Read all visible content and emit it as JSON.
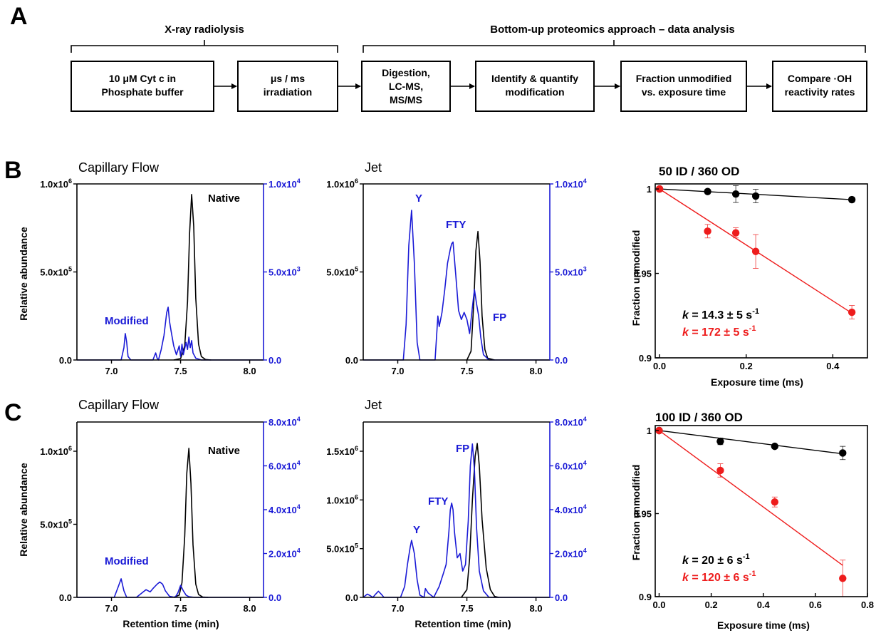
{
  "colors": {
    "black": "#000000",
    "blue": "#1a1ad6",
    "red": "#ee1c1c"
  },
  "panel_a": {
    "letter": "A",
    "header_left": "X-ray radiolysis",
    "header_right": "Bottom-up proteomics approach – data analysis",
    "steps": [
      [
        "10 μM Cyt c in",
        "Phosphate buffer"
      ],
      [
        "μs / ms",
        "irradiation"
      ],
      [
        "Digestion,",
        "LC-MS,",
        "MS/MS"
      ],
      [
        "Identify  & quantify",
        "modification"
      ],
      [
        "Fraction unmodified",
        "vs. exposure time"
      ],
      [
        "Compare ·OH",
        "reactivity rates"
      ]
    ]
  },
  "panel_b": {
    "letter": "B",
    "capillary": {
      "subtitle": "Capillary Flow",
      "ylabel": "Relative abundance",
      "xticks": [
        "7.0",
        "7.5",
        "8.0"
      ],
      "yticks_left": [
        "0.0",
        "5.0x10",
        "1.0x10"
      ],
      "yticks_left_exp": [
        "",
        "5",
        "6"
      ],
      "yticks_right": [
        "0.0",
        "5.0x10",
        "1.0x10"
      ],
      "yticks_right_exp": [
        "",
        "3",
        "4"
      ],
      "label_native": "Native",
      "label_modified": "Modified"
    },
    "jet": {
      "subtitle": "Jet",
      "xticks": [
        "7.0",
        "7.5",
        "8.0"
      ],
      "yticks_left": [
        "0.0",
        "5.0x10",
        "1.0x10"
      ],
      "yticks_left_exp": [
        "",
        "5",
        "6"
      ],
      "yticks_right": [
        "0.0",
        "5.0x10",
        "1.0x10"
      ],
      "yticks_right_exp": [
        "",
        "3",
        "4"
      ],
      "labels": [
        "Y",
        "FTY",
        "FP"
      ]
    },
    "kinetics": {
      "title": "50 ID / 360 OD",
      "ylabel": "Fraction unmodified",
      "xlabel": "Exposure time (ms)",
      "xticks": [
        "0.0",
        "0.2",
        "0.4"
      ],
      "yticks": [
        "0.9",
        "0.95",
        "1"
      ],
      "k_symbol": "k",
      "k_black": " = 14.3 ± 5 s",
      "k_red": " = 172 ± 5 s",
      "k_exp": "-1"
    }
  },
  "panel_c": {
    "letter": "C",
    "capillary": {
      "subtitle": "Capillary Flow",
      "ylabel": "Relative abundance",
      "xlabel": "Retention time (min)",
      "xticks": [
        "7.0",
        "7.5",
        "8.0"
      ],
      "yticks_left": [
        "0.0",
        "5.0x10",
        "1.0x10"
      ],
      "yticks_left_exp": [
        "",
        "5",
        "6"
      ],
      "yticks_right": [
        "0.0",
        "2.0x10",
        "4.0x10",
        "6.0x10",
        "8.0x10"
      ],
      "yticks_right_exp": [
        "",
        "4",
        "4",
        "4",
        "4"
      ],
      "label_native": "Native",
      "label_modified": "Modified"
    },
    "jet": {
      "subtitle": "Jet",
      "xlabel": "Retention time (min)",
      "xticks": [
        "7.0",
        "7.5",
        "8.0"
      ],
      "yticks_left": [
        "0.0",
        "5.0x10",
        "1.0x10",
        "1.5x10"
      ],
      "yticks_left_exp": [
        "",
        "5",
        "6",
        "6"
      ],
      "yticks_right": [
        "0.0",
        "2.0x10",
        "4.0x10",
        "6.0x10",
        "8.0x10"
      ],
      "yticks_right_exp": [
        "",
        "4",
        "4",
        "4",
        "4"
      ],
      "labels": [
        "Y",
        "FTY",
        "FP"
      ]
    },
    "kinetics": {
      "title": "100 ID / 360 OD",
      "ylabel": "Fraction unmodified",
      "xlabel": "Exposure time (ms)",
      "xticks": [
        "0.0",
        "0.2",
        "0.4",
        "0.6",
        "0.8"
      ],
      "yticks": [
        "0.9",
        "0.95",
        "1"
      ],
      "k_symbol": "k",
      "k_black": " = 20 ± 6 s",
      "k_red": " = 120 ± 6 s",
      "k_exp": "-1"
    }
  },
  "chart_data": [
    {
      "id": "B-capillary",
      "type": "line",
      "xlim": [
        6.75,
        8.1
      ],
      "ylim_left": [
        0,
        1000000
      ],
      "ylim_right": [
        0,
        10000
      ],
      "series": [
        {
          "axis": "left",
          "color": "#000000",
          "x": [
            7.45,
            7.5,
            7.53,
            7.55,
            7.565,
            7.58,
            7.595,
            7.61,
            7.63,
            7.65,
            7.68,
            7.72
          ],
          "y": [
            0,
            8000,
            80000,
            330000,
            720000,
            940000,
            760000,
            350000,
            90000,
            20000,
            3000,
            0
          ]
        },
        {
          "axis": "right",
          "color": "#1a1ad6",
          "x": [
            6.75,
            7.07,
            7.09,
            7.1,
            7.11,
            7.12,
            7.14,
            7.3,
            7.32,
            7.33,
            7.34,
            7.36,
            7.38,
            7.4,
            7.41,
            7.42,
            7.43,
            7.45,
            7.47,
            7.49,
            7.5,
            7.51,
            7.52,
            7.54,
            7.55,
            7.56,
            7.57,
            7.58,
            7.59,
            7.61,
            7.65,
            8.1
          ],
          "y": [
            0,
            0,
            700,
            1500,
            1000,
            200,
            0,
            0,
            400,
            100,
            0,
            600,
            1400,
            2700,
            3000,
            2200,
            1700,
            800,
            300,
            800,
            200,
            900,
            300,
            1000,
            600,
            1300,
            700,
            1100,
            400,
            100,
            0,
            0
          ]
        }
      ]
    },
    {
      "id": "B-jet",
      "type": "line",
      "xlim": [
        6.75,
        8.1
      ],
      "ylim_left": [
        0,
        1000000
      ],
      "ylim_right": [
        0,
        10000
      ],
      "series": [
        {
          "axis": "left",
          "color": "#000000",
          "x": [
            7.5,
            7.53,
            7.55,
            7.565,
            7.58,
            7.595,
            7.61,
            7.63,
            7.65,
            7.7
          ],
          "y": [
            0,
            50000,
            330000,
            620000,
            730000,
            560000,
            250000,
            60000,
            10000,
            0
          ]
        },
        {
          "axis": "right",
          "color": "#1a1ad6",
          "x": [
            6.75,
            7.04,
            7.06,
            7.08,
            7.1,
            7.12,
            7.14,
            7.16,
            7.27,
            7.29,
            7.3,
            7.32,
            7.34,
            7.36,
            7.38,
            7.39,
            7.4,
            7.42,
            7.44,
            7.46,
            7.48,
            7.5,
            7.52,
            7.54,
            7.555,
            7.57,
            7.585,
            7.6,
            7.62,
            7.66,
            8.1
          ],
          "y": [
            0,
            0,
            2000,
            6500,
            8500,
            5500,
            1000,
            0,
            0,
            2500,
            1900,
            2700,
            4000,
            5500,
            6300,
            6600,
            6700,
            4800,
            2800,
            2300,
            2700,
            2300,
            1500,
            3000,
            4000,
            3200,
            2500,
            1300,
            300,
            0,
            0
          ]
        }
      ]
    },
    {
      "id": "B-kinetics",
      "type": "scatter",
      "title": "50 ID / 360 OD",
      "xlabel": "Exposure time (ms)",
      "ylabel": "Fraction unmodified",
      "xlim": [
        -0.01,
        0.48
      ],
      "ylim": [
        0.9,
        1.003
      ],
      "series": [
        {
          "color": "#000000",
          "x": [
            0,
            0.111,
            0.176,
            0.222,
            0.444
          ],
          "y": [
            1,
            0.9985,
            0.997,
            0.9958,
            0.9937
          ],
          "err": [
            0,
            0.001,
            0.005,
            0.004,
            0.0015
          ],
          "k": 14.3
        },
        {
          "color": "#ee1c1c",
          "x": [
            0,
            0.111,
            0.176,
            0.222,
            0.444
          ],
          "y": [
            1,
            0.975,
            0.974,
            0.963,
            0.927
          ],
          "err": [
            0,
            0.004,
            0.003,
            0.01,
            0.004
          ],
          "k": 172
        }
      ]
    },
    {
      "id": "C-capillary",
      "type": "line",
      "xlim": [
        6.75,
        8.1
      ],
      "ylim_left": [
        0,
        1200000
      ],
      "ylim_right": [
        0,
        80000
      ],
      "series": [
        {
          "axis": "left",
          "color": "#000000",
          "x": [
            7.45,
            7.49,
            7.51,
            7.53,
            7.545,
            7.56,
            7.575,
            7.59,
            7.61,
            7.63,
            7.66,
            7.7
          ],
          "y": [
            0,
            15000,
            100000,
            420000,
            850000,
            1020000,
            780000,
            360000,
            90000,
            20000,
            2000,
            0
          ]
        },
        {
          "axis": "right",
          "color": "#1a1ad6",
          "x": [
            6.75,
            7.02,
            7.05,
            7.07,
            7.09,
            7.11,
            7.18,
            7.22,
            7.25,
            7.28,
            7.3,
            7.33,
            7.35,
            7.37,
            7.39,
            7.42,
            7.46,
            7.48,
            7.5,
            7.52,
            7.54,
            7.56,
            7.6,
            8.1
          ],
          "y": [
            0,
            0,
            5000,
            8500,
            3000,
            0,
            0,
            2000,
            3500,
            2500,
            4000,
            6000,
            7000,
            6000,
            3000,
            500,
            0,
            2000,
            5500,
            3000,
            1000,
            300,
            0,
            0
          ]
        }
      ]
    },
    {
      "id": "C-jet",
      "type": "line",
      "xlim": [
        6.75,
        8.1
      ],
      "ylim_left": [
        0,
        1800000
      ],
      "ylim_right": [
        0,
        80000
      ],
      "series": [
        {
          "axis": "left",
          "color": "#000000",
          "x": [
            7.46,
            7.5,
            7.52,
            7.54,
            7.56,
            7.575,
            7.59,
            7.61,
            7.64,
            7.67,
            7.7,
            7.73
          ],
          "y": [
            0,
            80000,
            400000,
            1000000,
            1450000,
            1580000,
            1350000,
            800000,
            300000,
            80000,
            10000,
            0
          ]
        },
        {
          "axis": "right",
          "color": "#1a1ad6",
          "x": [
            6.75,
            6.78,
            6.8,
            6.82,
            6.84,
            6.86,
            6.88,
            6.9,
            7.02,
            7.05,
            7.07,
            7.09,
            7.1,
            7.12,
            7.14,
            7.16,
            7.19,
            7.2,
            7.22,
            7.26,
            7.3,
            7.33,
            7.35,
            7.37,
            7.38,
            7.39,
            7.4,
            7.41,
            7.43,
            7.45,
            7.47,
            7.49,
            7.51,
            7.525,
            7.54,
            7.555,
            7.57,
            7.59,
            7.62,
            7.66,
            8.1
          ],
          "y": [
            0,
            1500,
            800,
            0,
            1500,
            2800,
            1500,
            0,
            0,
            5000,
            15000,
            23000,
            26000,
            20000,
            8000,
            1000,
            0,
            4000,
            2000,
            0,
            5000,
            11000,
            15000,
            30000,
            40000,
            43000,
            40000,
            30000,
            18000,
            20000,
            12000,
            15000,
            35000,
            60000,
            70000,
            58000,
            32000,
            12000,
            3000,
            0,
            0
          ]
        }
      ]
    },
    {
      "id": "C-kinetics",
      "type": "scatter",
      "title": "100 ID / 360 OD",
      "xlabel": "Exposure time (ms)",
      "ylabel": "Fraction unmodified",
      "xlim": [
        -0.015,
        0.8
      ],
      "ylim": [
        0.9,
        1.003
      ],
      "series": [
        {
          "color": "#000000",
          "x": [
            0,
            0.235,
            0.444,
            0.705
          ],
          "y": [
            1,
            0.9935,
            0.9905,
            0.9865
          ],
          "err": [
            0,
            0.002,
            0.001,
            0.004
          ],
          "k": 20
        },
        {
          "color": "#ee1c1c",
          "x": [
            0,
            0.235,
            0.444,
            0.705
          ],
          "y": [
            1,
            0.976,
            0.957,
            0.911
          ],
          "err": [
            0,
            0.004,
            0.003,
            0.011
          ],
          "k": 120
        }
      ]
    }
  ]
}
